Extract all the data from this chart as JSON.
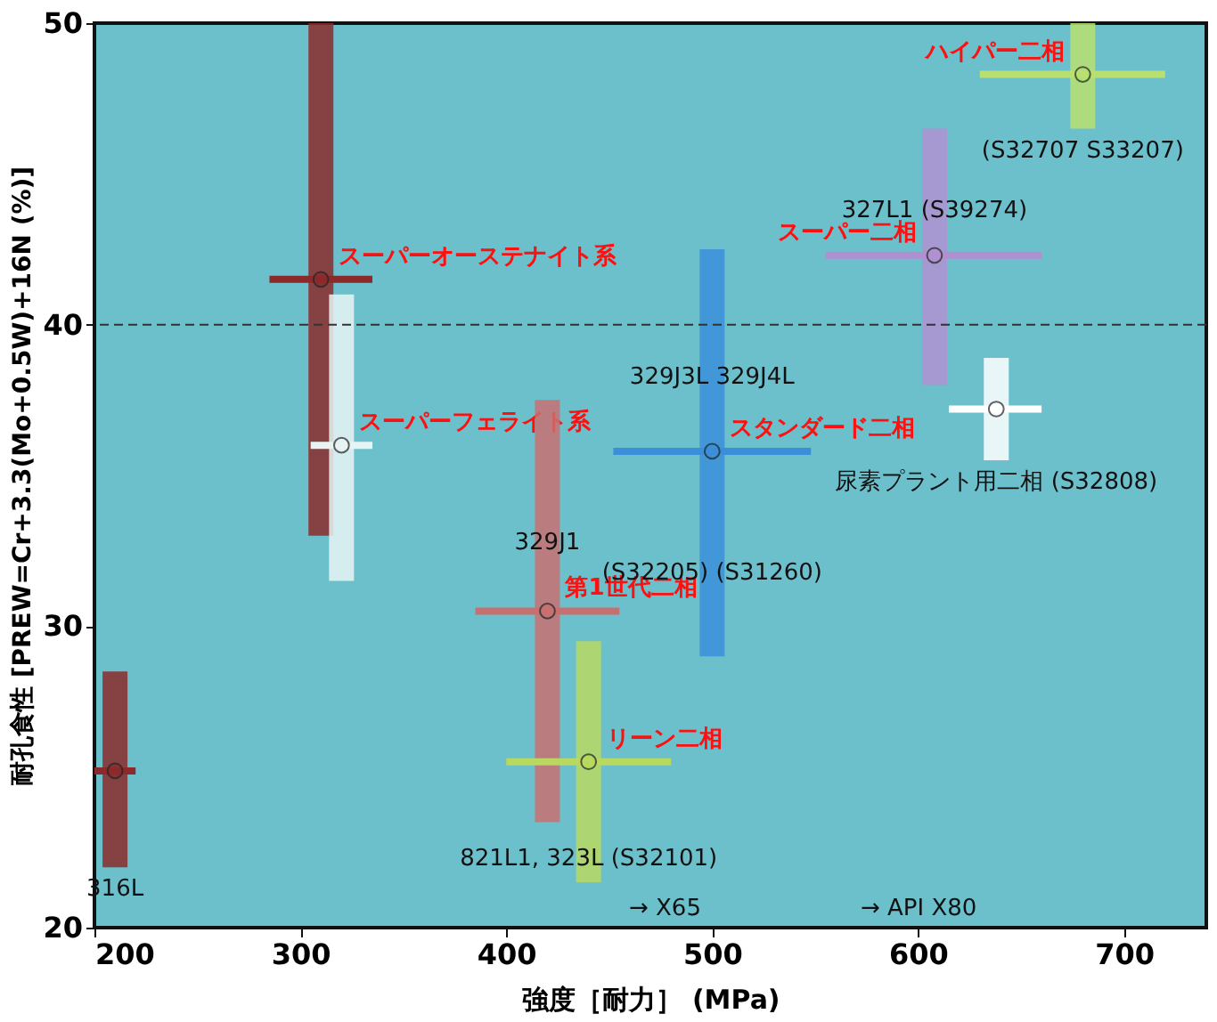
{
  "chart_data": {
    "type": "scatter",
    "xlabel": "強度［耐力］ (MPa)",
    "ylabel": "耐孔食性 [PREW=Cr+3.3(Mo+0.5W)+16N (%)]",
    "xlim": [
      200,
      740
    ],
    "xticks": [
      200,
      300,
      400,
      500,
      600,
      700
    ],
    "ylim": [
      20,
      50
    ],
    "yticks": [
      20,
      30,
      40,
      50
    ],
    "grid": false,
    "marker": "circle",
    "series": [
      {
        "color": "#8b2a2a",
        "x": [
          210
        ],
        "values": [
          25.2
        ],
        "errors": [
          [
            22,
            28.5
          ]
        ],
        "xerrors": [
          [
            200,
            220
          ]
        ]
      },
      {
        "name": "スーパーオーステナイト系",
        "color": "#8b2a2a",
        "x": [
          310
        ],
        "values": [
          41.5
        ],
        "errors": [
          [
            33,
            50
          ]
        ],
        "xerrors": [
          [
            285,
            335
          ]
        ]
      },
      {
        "name": "スーパーフェライト系",
        "color": "#e8f4f4",
        "x": [
          320
        ],
        "values": [
          36
        ],
        "errors": [
          [
            31.5,
            41
          ]
        ],
        "xerrors": [
          [
            305,
            335
          ]
        ]
      },
      {
        "name": "第1世代二相",
        "color": "#c87070",
        "x": [
          420
        ],
        "values": [
          30.5
        ],
        "errors": [
          [
            23.5,
            37.5
          ]
        ],
        "xerrors": [
          [
            385,
            455
          ]
        ]
      },
      {
        "name": "リーン二相",
        "color": "#b8d860",
        "x": [
          440
        ],
        "values": [
          25.5
        ],
        "errors": [
          [
            21.5,
            29.5
          ]
        ],
        "xerrors": [
          [
            400,
            480
          ]
        ]
      },
      {
        "name": "スタンダード二相",
        "color": "#3a8fd8",
        "x": [
          500
        ],
        "values": [
          35.8
        ],
        "errors": [
          [
            29,
            42.5
          ]
        ],
        "xerrors": [
          [
            452,
            548
          ]
        ]
      },
      {
        "name": "スーパー二相",
        "color": "#b090d0",
        "x": [
          608
        ],
        "values": [
          42.3
        ],
        "errors": [
          [
            38,
            46.5
          ]
        ],
        "xerrors": [
          [
            555,
            660
          ]
        ]
      },
      {
        "color": "#ffffff",
        "x": [
          638
        ],
        "values": [
          37.2
        ],
        "errors": [
          [
            35.5,
            38.9
          ]
        ],
        "xerrors": [
          [
            615,
            660
          ]
        ]
      },
      {
        "name": "ハイパー二相",
        "color": "#b8e070",
        "x": [
          680
        ],
        "values": [
          48.3
        ],
        "errors": [
          [
            46.5,
            50
          ]
        ],
        "xerrors": [
          [
            630,
            720
          ]
        ]
      }
    ],
    "ref_lines": [
      {
        "axis": "y",
        "value": 40,
        "line_style": "dashed",
        "color": "#333333"
      }
    ],
    "annotations": [
      {
        "text": "316L",
        "x": 210,
        "y": 22
      },
      {
        "text": "329J1",
        "x": 420,
        "y": 33.5
      },
      {
        "text": "821L1, 323L (S32101)",
        "x": 440,
        "y": 23
      },
      {
        "text": "329J3L 329J4L",
        "x": 500,
        "y": 39
      },
      {
        "text": "(S32205) (S31260)",
        "x": 500,
        "y": 32.5
      },
      {
        "text": "327L1 (S39274)",
        "x": 608,
        "y": 44.5
      },
      {
        "text": "尿素プラント用二相 (S32808)",
        "x": 638,
        "y": 35.5
      },
      {
        "text": "(S32707 S33207)",
        "x": 680,
        "y": 46.5
      },
      "→ X65",
      "→ API X80"
    ]
  }
}
